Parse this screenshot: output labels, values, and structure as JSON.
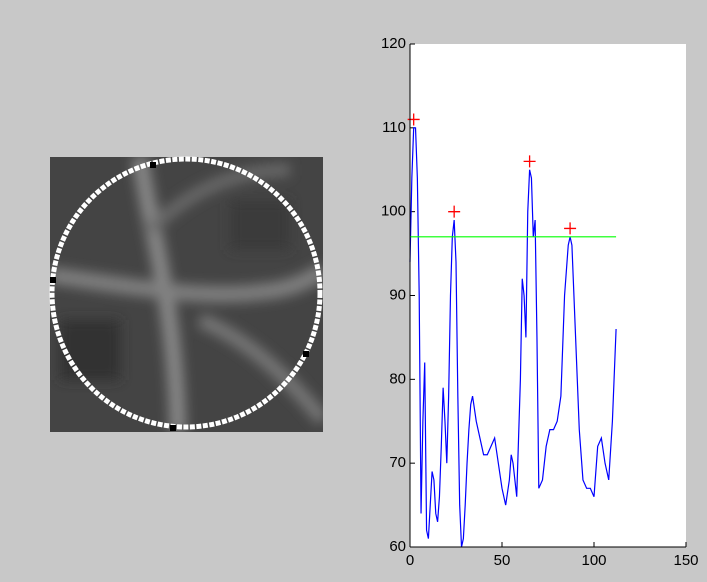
{
  "chart_data": {
    "type": "line",
    "xlim": [
      0,
      150
    ],
    "xticks": [
      0,
      50,
      100,
      150
    ],
    "ylim": [
      60,
      120
    ],
    "yticks": [
      60,
      70,
      80,
      90,
      100,
      110,
      120
    ],
    "series": [
      {
        "color": "#0000ff",
        "x": [
          0,
          1,
          2,
          3,
          4,
          5,
          6,
          7,
          8,
          9,
          10,
          11,
          12,
          13,
          14,
          15,
          16,
          17,
          18,
          19,
          20,
          21,
          22,
          23,
          24,
          25,
          26,
          27,
          28,
          29,
          30,
          31,
          32,
          33,
          34,
          36,
          38,
          40,
          42,
          44,
          46,
          48,
          50,
          52,
          54,
          55,
          56,
          58,
          60,
          61,
          62,
          63,
          64,
          65,
          66,
          67,
          68,
          69,
          70,
          72,
          74,
          76,
          78,
          80,
          82,
          84,
          86,
          87,
          88,
          90,
          92,
          94,
          96,
          98,
          100,
          102,
          104,
          106,
          108,
          110,
          112
        ],
        "values": [
          94,
          104,
          110,
          110,
          104,
          90,
          64,
          75,
          82,
          62,
          61,
          65,
          69,
          68,
          64,
          63,
          66,
          72,
          79,
          75,
          70,
          78,
          90,
          97,
          99,
          94,
          78,
          65,
          60,
          61,
          65,
          70,
          74,
          77,
          78,
          75,
          73,
          71,
          71,
          72,
          73,
          70,
          67,
          65,
          68,
          71,
          70,
          66,
          80,
          92,
          90,
          85,
          100,
          105,
          104,
          97,
          99,
          85,
          67,
          68,
          72,
          74,
          74,
          75,
          78,
          90,
          96,
          97,
          96,
          85,
          74,
          68,
          67,
          67,
          66,
          72,
          73,
          70,
          68,
          75,
          86
        ]
      },
      {
        "color": "#00ff00",
        "x": [
          0,
          112
        ],
        "values": [
          97,
          97
        ]
      },
      {
        "color": "#ff0000",
        "marker": "+",
        "linestyle": "none",
        "x": [
          2,
          24,
          65,
          87
        ],
        "values": [
          111,
          100,
          106,
          98
        ]
      }
    ]
  }
}
